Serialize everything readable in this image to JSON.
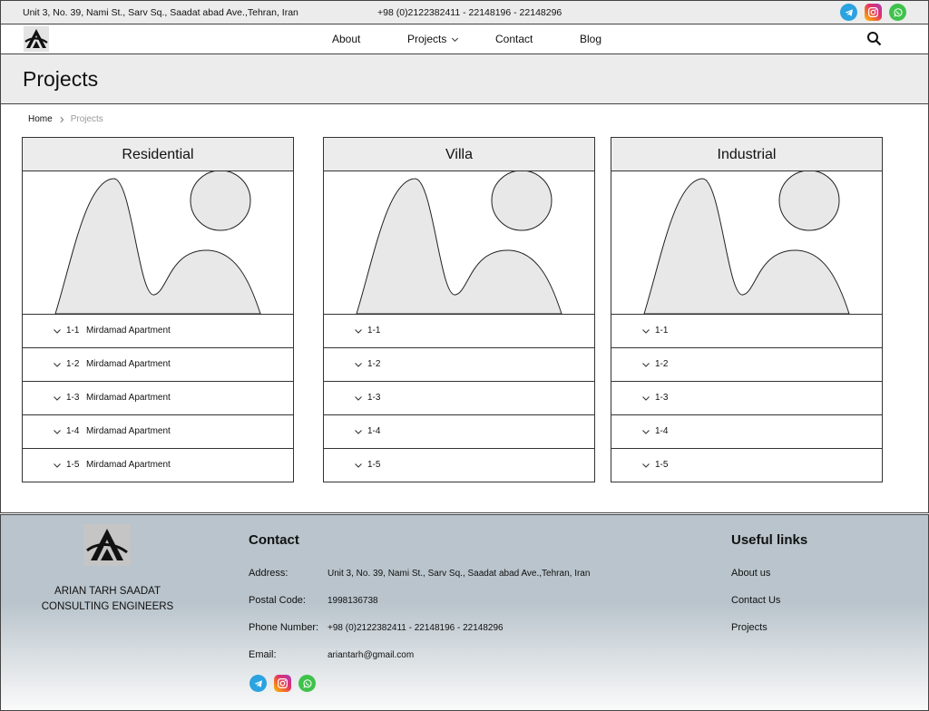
{
  "topbar": {
    "address": "Unit 3, No. 39, Nami St., Sarv Sq., Saadat abad Ave.,Tehran, Iran",
    "phone": "+98 (0)2122382411 - 22148196 - 22148296",
    "social_icons": [
      "telegram-icon",
      "instagram-icon",
      "whatsapp-icon"
    ]
  },
  "nav": {
    "items": [
      {
        "label": "About"
      },
      {
        "label": "Projects"
      },
      {
        "label": "Contact"
      },
      {
        "label": "Blog"
      }
    ]
  },
  "page": {
    "title": "Projects"
  },
  "breadcrumb": {
    "home": "Home",
    "current": "Projects"
  },
  "cards": [
    {
      "title": "Residential",
      "items": [
        {
          "num": "1-1",
          "name": "Mirdamad Apartment"
        },
        {
          "num": "1-2",
          "name": "Mirdamad Apartment"
        },
        {
          "num": "1-3",
          "name": "Mirdamad Apartment"
        },
        {
          "num": "1-4",
          "name": "Mirdamad Apartment"
        },
        {
          "num": "1-5",
          "name": "Mirdamad Apartment"
        }
      ]
    },
    {
      "title": "Villa",
      "items": [
        {
          "num": "1-1",
          "name": ""
        },
        {
          "num": "1-2",
          "name": ""
        },
        {
          "num": "1-3",
          "name": ""
        },
        {
          "num": "1-4",
          "name": ""
        },
        {
          "num": "1-5",
          "name": ""
        }
      ]
    },
    {
      "title": "Industrial",
      "items": [
        {
          "num": "1-1",
          "name": ""
        },
        {
          "num": "1-2",
          "name": ""
        },
        {
          "num": "1-3",
          "name": ""
        },
        {
          "num": "1-4",
          "name": ""
        },
        {
          "num": "1-5",
          "name": ""
        }
      ]
    }
  ],
  "footer": {
    "company_line1": "ARIAN TARH SAADAT",
    "company_line2": "CONSULTING ENGINEERS",
    "contact_heading": "Contact",
    "contact": [
      {
        "label": "Address:",
        "value": "Unit 3, No. 39, Nami St., Sarv Sq., Saadat abad Ave.,Tehran, Iran"
      },
      {
        "label": "Postal Code:",
        "value": "1998136738"
      },
      {
        "label": "Phone Number:",
        "value": "+98 (0)2122382411 - 22148196 - 22148296"
      },
      {
        "label": "Email:",
        "value": "ariantarh@gmail.com"
      }
    ],
    "useful_heading": "Useful links",
    "links": [
      {
        "label": "About us"
      },
      {
        "label": "Contact Us"
      },
      {
        "label": "Projects"
      }
    ]
  }
}
